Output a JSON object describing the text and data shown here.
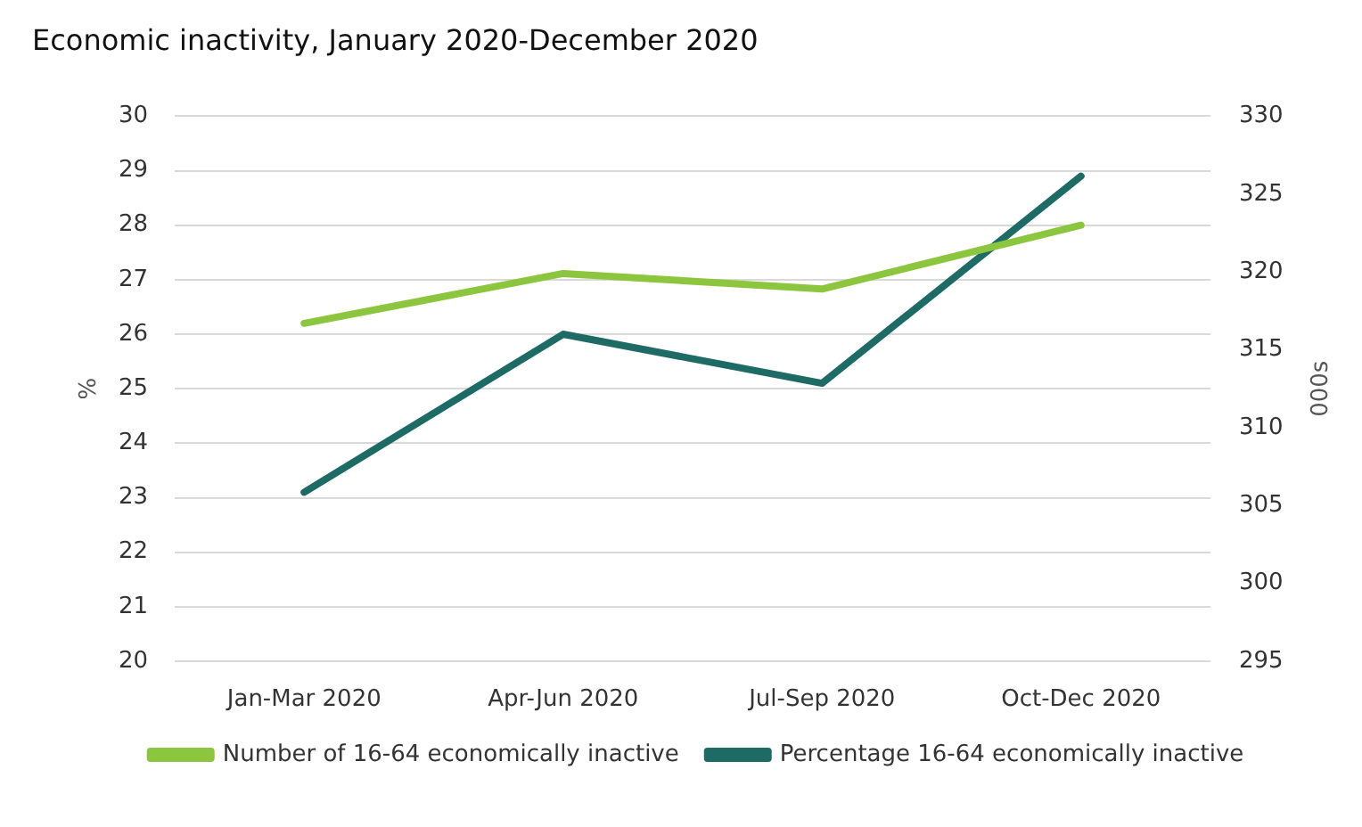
{
  "chart_data": {
    "type": "line",
    "title": "Economic inactivity, January 2020-December 2020",
    "ylabel": "%",
    "y2label": "000s",
    "categories": [
      "Jan-Mar 2020",
      "Apr-Jun 2020",
      "Jul-Sep 2020",
      "Oct-Dec 2020"
    ],
    "series": [
      {
        "name": "Number of 16-64 economically inactive",
        "color": "#8cc63f",
        "axis": "y2",
        "values": [
          316.7,
          319.9,
          318.9,
          323.0
        ]
      },
      {
        "name": "Percentage 16-64 economically inactive",
        "color": "#1e6b66",
        "values": [
          23.1,
          26.0,
          25.1,
          28.9
        ]
      }
    ],
    "ylim": [
      20,
      30
    ],
    "yticks": [
      20,
      21,
      22,
      23,
      24,
      25,
      26,
      27,
      28,
      29,
      30
    ],
    "y2lim": [
      295,
      330
    ],
    "y2ticks": [
      295,
      300,
      305,
      310,
      315,
      320,
      325,
      330
    ],
    "grid": "y",
    "legend": "bottom",
    "marker": "none",
    "line_style": "solid"
  }
}
